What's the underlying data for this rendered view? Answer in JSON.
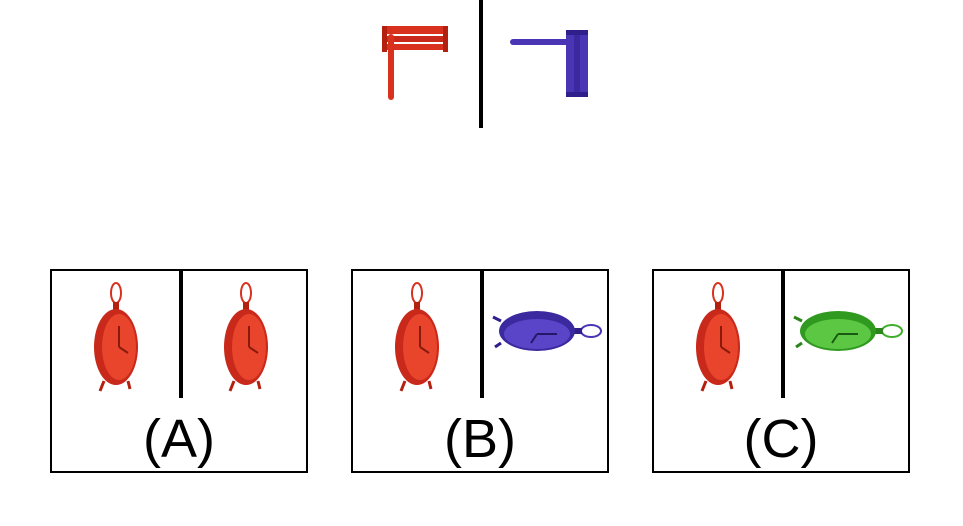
{
  "colors": {
    "red": "#d8321f",
    "red_dark": "#b3200f",
    "blue": "#4a35b5",
    "blue_dark": "#2e1f8a",
    "green": "#3fae2a",
    "green_dark": "#2a861a"
  },
  "reference": {
    "left_object": {
      "icon": "rattle-icon",
      "color": "red",
      "orientation": "upright"
    },
    "right_object": {
      "icon": "rattle-icon",
      "color": "blue",
      "orientation": "rotated"
    }
  },
  "options": [
    {
      "label": "(A)",
      "left_icon": "clock-icon",
      "left_color": "red",
      "right_icon": "clock-icon",
      "right_color": "red",
      "right_orientation": "upright"
    },
    {
      "label": "(B)",
      "left_icon": "clock-icon",
      "left_color": "red",
      "right_icon": "clock-icon",
      "right_color": "blue",
      "right_orientation": "rotated"
    },
    {
      "label": "(C)",
      "left_icon": "clock-icon",
      "left_color": "red",
      "right_icon": "clock-icon",
      "right_color": "green",
      "right_orientation": "rotated"
    }
  ]
}
